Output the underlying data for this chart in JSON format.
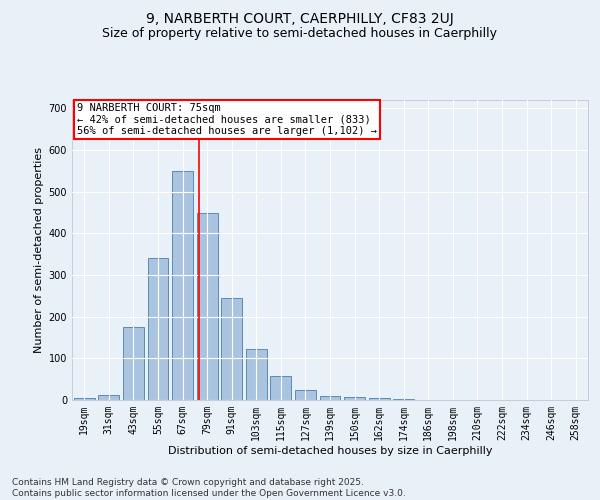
{
  "title": "9, NARBERTH COURT, CAERPHILLY, CF83 2UJ",
  "subtitle": "Size of property relative to semi-detached houses in Caerphilly",
  "xlabel": "Distribution of semi-detached houses by size in Caerphilly",
  "ylabel": "Number of semi-detached properties",
  "bar_labels": [
    "19sqm",
    "31sqm",
    "43sqm",
    "55sqm",
    "67sqm",
    "79sqm",
    "91sqm",
    "103sqm",
    "115sqm",
    "127sqm",
    "139sqm",
    "150sqm",
    "162sqm",
    "174sqm",
    "186sqm",
    "198sqm",
    "210sqm",
    "222sqm",
    "234sqm",
    "246sqm",
    "258sqm"
  ],
  "bar_values": [
    5,
    11,
    175,
    340,
    550,
    450,
    245,
    122,
    57,
    25,
    10,
    8,
    5,
    3,
    0,
    0,
    0,
    0,
    0,
    0,
    0
  ],
  "bar_color": "#aac4e0",
  "bar_edge_color": "#5a8ab8",
  "property_line_color": "red",
  "annotation_text": "9 NARBERTH COURT: 75sqm\n← 42% of semi-detached houses are smaller (833)\n56% of semi-detached houses are larger (1,102) →",
  "annotation_box_color": "white",
  "annotation_edge_color": "red",
  "ylim": [
    0,
    720
  ],
  "background_color": "#e8f0f8",
  "grid_color": "white",
  "footer_text": "Contains HM Land Registry data © Crown copyright and database right 2025.\nContains public sector information licensed under the Open Government Licence v3.0.",
  "title_fontsize": 10,
  "subtitle_fontsize": 9,
  "xlabel_fontsize": 8,
  "ylabel_fontsize": 8,
  "tick_fontsize": 7,
  "annotation_fontsize": 7.5,
  "footer_fontsize": 6.5
}
